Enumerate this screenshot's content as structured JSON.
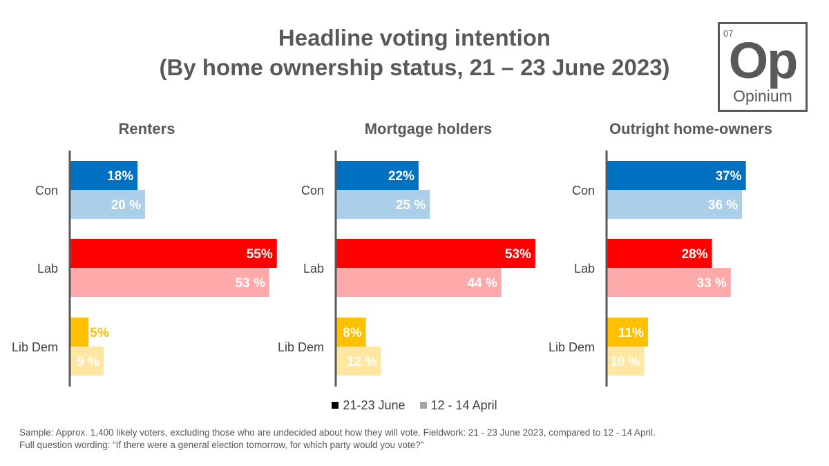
{
  "title": "Headline voting intention",
  "subtitle": "(By home ownership status, 21 – 23 June 2023)",
  "logo": {
    "number": "07",
    "symbol": "Op",
    "name": "Opinium"
  },
  "legend": [
    {
      "label": "21-23 June",
      "color": "#000000"
    },
    {
      "label": "12 - 14 April",
      "color": "#a6a6a6"
    }
  ],
  "footnote": {
    "line1": "Sample: Approx. 1,400 likely voters, excluding those who are undecided about how they will vote. Fieldwork: 21 - 23 June 2023, compared to 12 - 14 April.",
    "line2": "Full question wording: “If there were a general election tomorrow, for which party would you vote?”"
  },
  "colors": {
    "Con": {
      "current": "#0070c0",
      "previous": "#abcfe8"
    },
    "Lab": {
      "current": "#ff0000",
      "previous": "#ffaaaa"
    },
    "Lib Dem": {
      "current": "#ffc000",
      "previous": "#ffe6a1"
    },
    "axis": "#595959"
  },
  "chart_data": [
    {
      "type": "bar",
      "title": "Renters",
      "categories": [
        "Con",
        "Lab",
        "Lib Dem"
      ],
      "series": [
        {
          "name": "21-23 June",
          "values": [
            18,
            55,
            5
          ],
          "labels": [
            "18%",
            "55%",
            "5%"
          ]
        },
        {
          "name": "12 - 14 April",
          "values": [
            20,
            53,
            9
          ],
          "labels": [
            "20 %",
            "53 %",
            "9 %"
          ]
        }
      ]
    },
    {
      "type": "bar",
      "title": "Mortgage holders",
      "categories": [
        "Con",
        "Lab",
        "Lib Dem"
      ],
      "series": [
        {
          "name": "21-23 June",
          "values": [
            22,
            53,
            8
          ],
          "labels": [
            "22%",
            "53%",
            "8%"
          ]
        },
        {
          "name": "12 - 14 April",
          "values": [
            25,
            44,
            12
          ],
          "labels": [
            "25 %",
            "44 %",
            "12 %"
          ]
        }
      ]
    },
    {
      "type": "bar",
      "title": "Outright home-owners",
      "categories": [
        "Con",
        "Lab",
        "Lib Dem"
      ],
      "series": [
        {
          "name": "21-23 June",
          "values": [
            37,
            28,
            11
          ],
          "labels": [
            "37%",
            "28%",
            "11%"
          ]
        },
        {
          "name": "12 - 14 April",
          "values": [
            36,
            33,
            10
          ],
          "labels": [
            "36 %",
            "33 %",
            "10 %"
          ]
        }
      ]
    }
  ]
}
